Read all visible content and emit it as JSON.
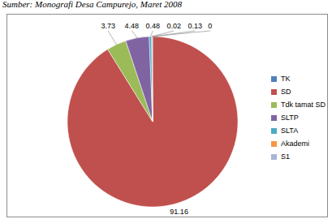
{
  "chart_data": {
    "type": "pie",
    "annotations": [
      "Sumber: Monografi Desa Campurejo, Maret 2008"
    ],
    "categories": [
      "TK",
      "SD",
      "Tdk tamat SD",
      "SLTP",
      "SLTA",
      "Akademi",
      "S1"
    ],
    "values": [
      0,
      91.16,
      3.73,
      4.48,
      0.48,
      0.02,
      0.13
    ],
    "colors": [
      "#4f81bd",
      "#c0504d",
      "#9bbb59",
      "#8064a2",
      "#4bacc6",
      "#f79646",
      "#a5b6d7"
    ],
    "data_labels": true,
    "legend": "right"
  }
}
